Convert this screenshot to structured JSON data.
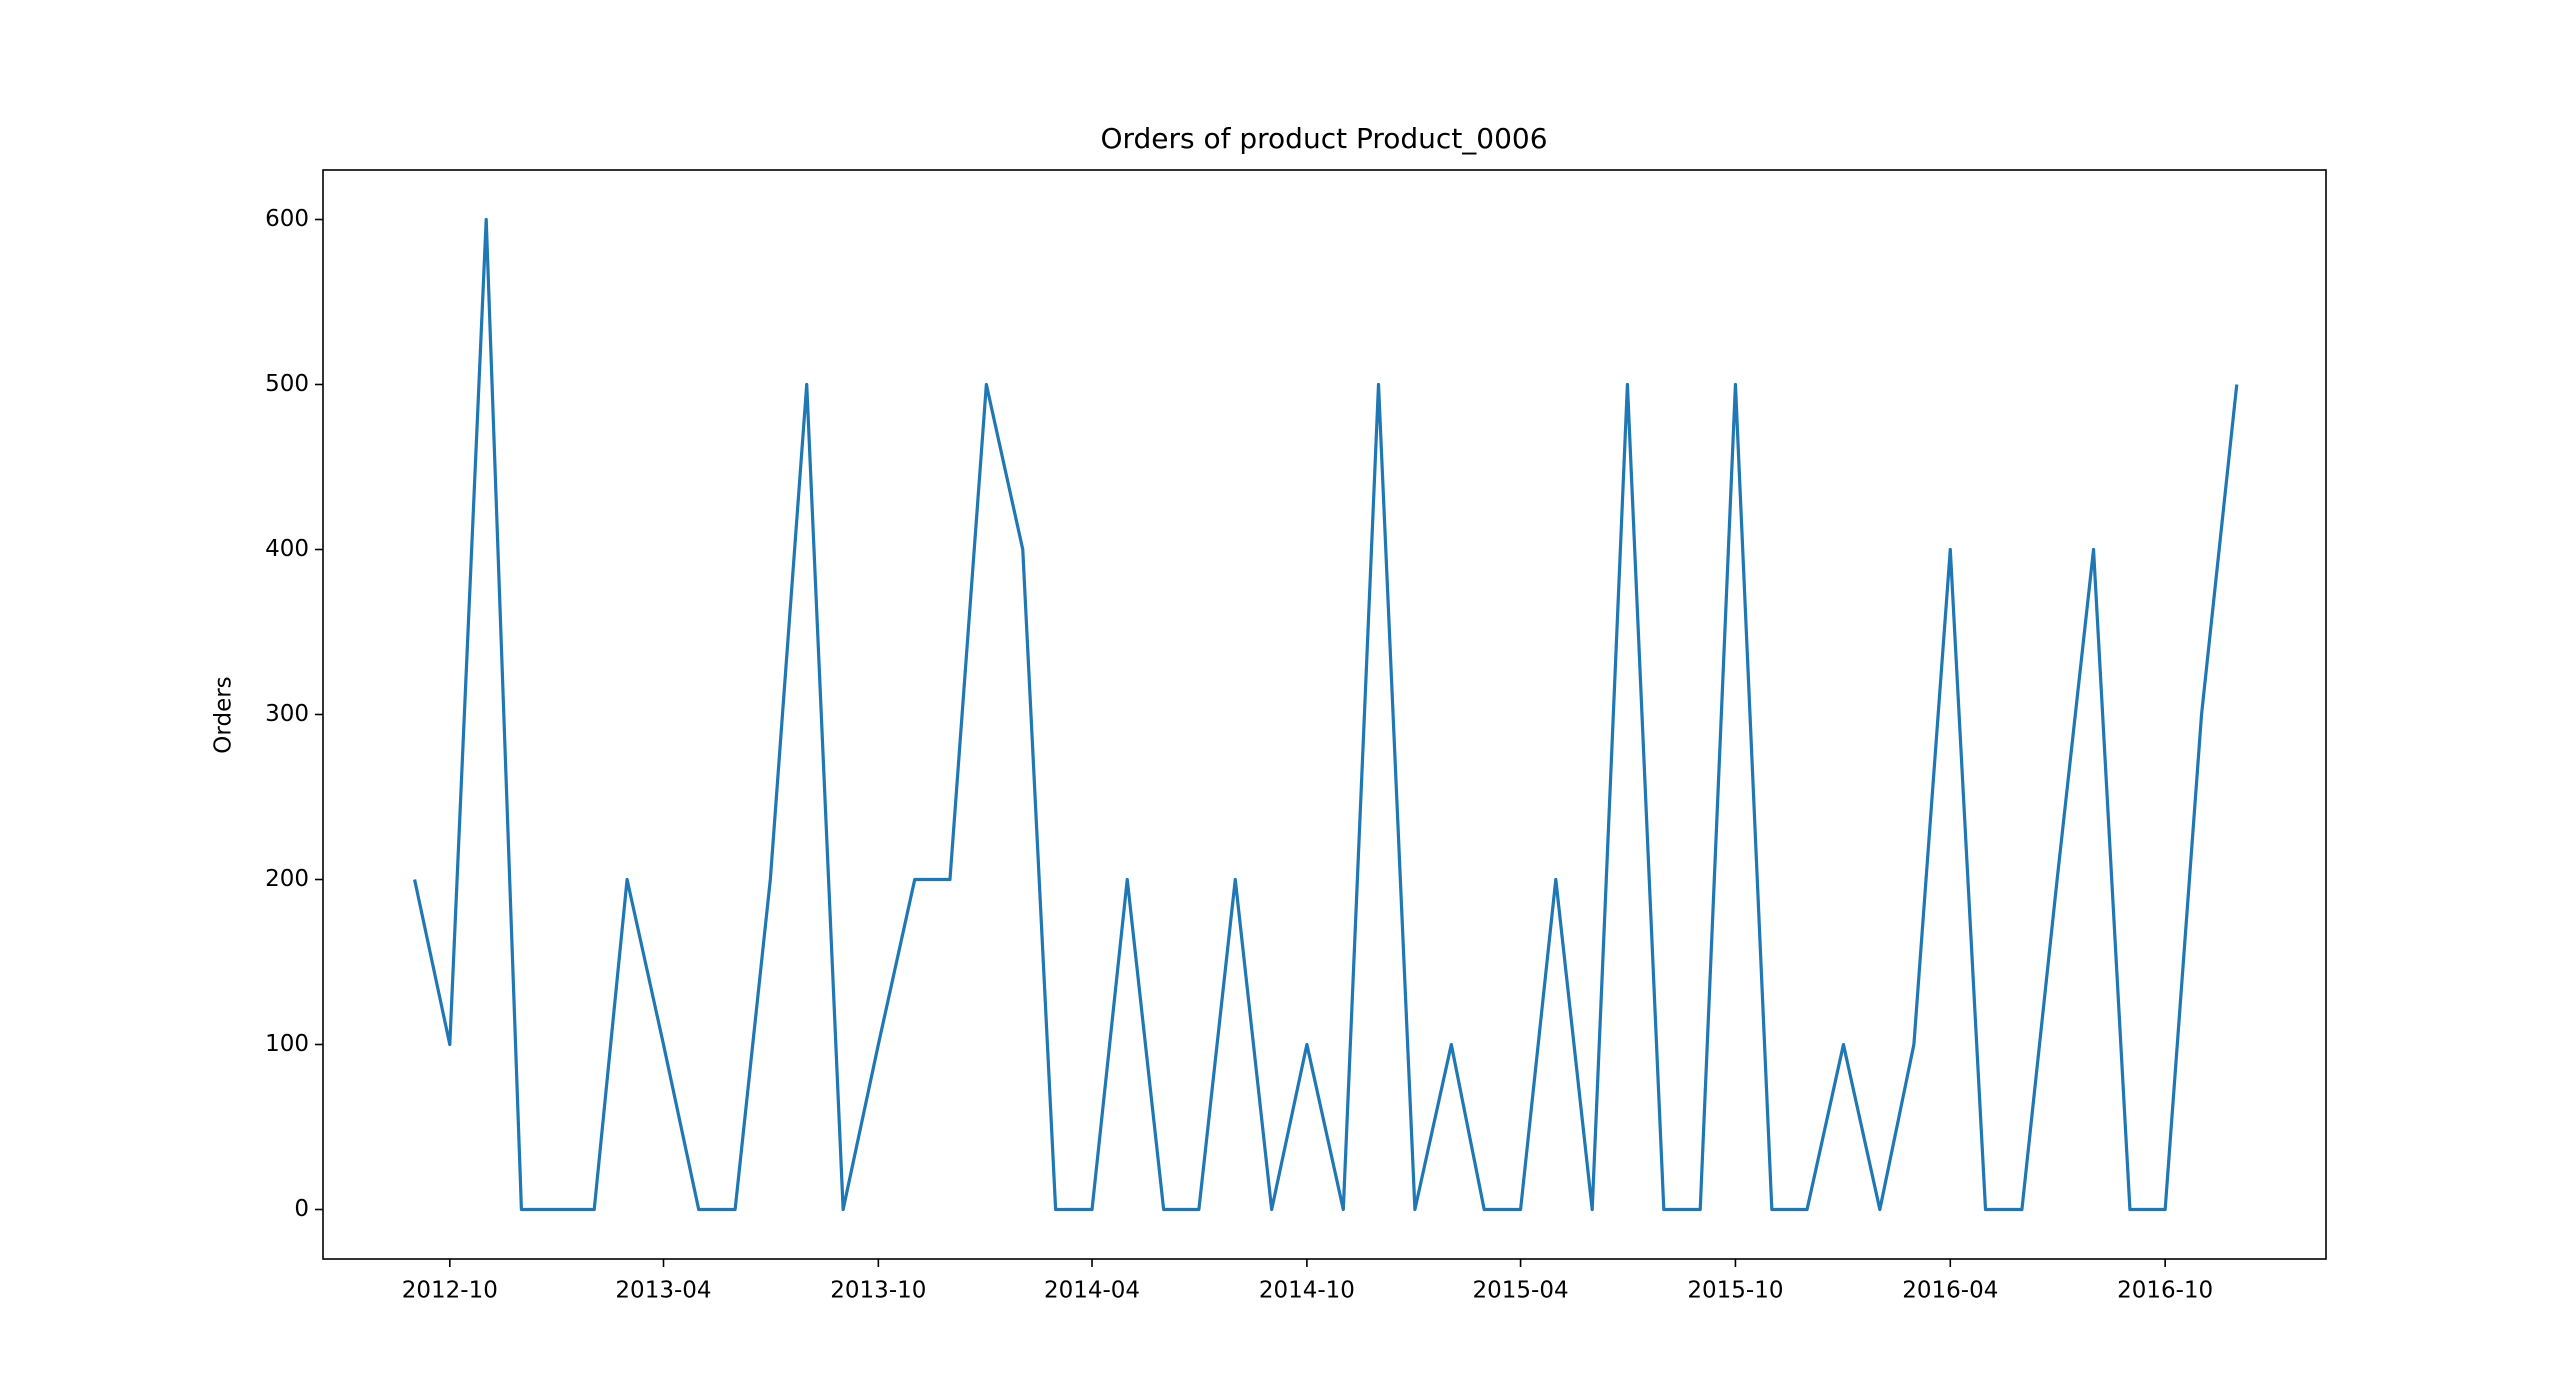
{
  "chart_data": {
    "type": "line",
    "title": "Orders of product Product_0006",
    "ylabel": "Orders",
    "x": [
      "2012-09",
      "2012-10",
      "2012-11",
      "2012-12",
      "2013-01",
      "2013-02",
      "2013-03",
      "2013-04",
      "2013-05",
      "2013-06",
      "2013-07",
      "2013-08",
      "2013-09",
      "2013-10",
      "2013-11",
      "2013-12",
      "2014-01",
      "2014-02",
      "2014-03",
      "2014-04",
      "2014-05",
      "2014-06",
      "2014-07",
      "2014-08",
      "2014-09",
      "2014-10",
      "2014-11",
      "2014-12",
      "2015-01",
      "2015-02",
      "2015-03",
      "2015-04",
      "2015-05",
      "2015-06",
      "2015-07",
      "2015-08",
      "2015-09",
      "2015-10",
      "2015-11",
      "2015-12",
      "2016-01",
      "2016-02",
      "2016-03",
      "2016-04",
      "2016-05",
      "2016-06",
      "2016-07",
      "2016-08",
      "2016-09",
      "2016-10",
      "2016-11",
      "2016-12"
    ],
    "series": [
      {
        "name": "Orders",
        "color": "#1f77b4",
        "values": [
          200,
          100,
          600,
          0,
          0,
          0,
          200,
          100,
          0,
          0,
          200,
          500,
          0,
          100,
          200,
          200,
          500,
          400,
          0,
          0,
          200,
          0,
          0,
          200,
          0,
          100,
          0,
          500,
          0,
          100,
          0,
          0,
          200,
          0,
          500,
          0,
          0,
          500,
          0,
          0,
          100,
          0,
          100,
          400,
          0,
          0,
          200,
          400,
          0,
          0,
          300,
          500
        ]
      }
    ],
    "xlim": [
      "2012-06-15",
      "2017-02-15"
    ],
    "xticks": [
      "2012-10",
      "2013-04",
      "2013-10",
      "2014-04",
      "2014-10",
      "2015-04",
      "2015-10",
      "2016-04",
      "2016-10"
    ],
    "ylim": [
      -30,
      630
    ],
    "yticks": [
      0,
      100,
      200,
      300,
      400,
      500,
      600
    ],
    "grid": false
  }
}
